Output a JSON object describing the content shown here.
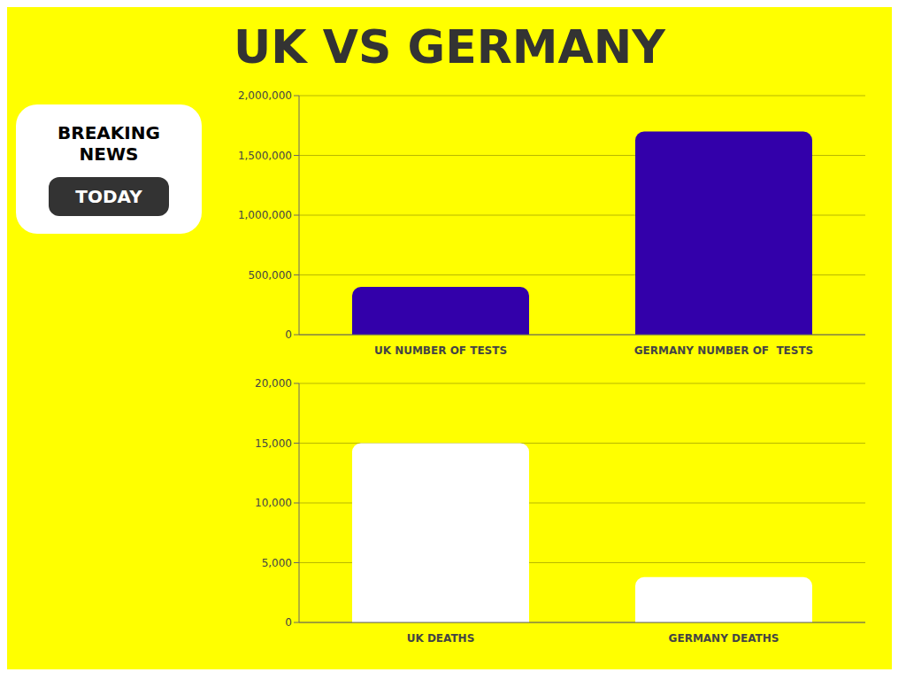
{
  "chart_data": [
    {
      "type": "bar",
      "title": "UK VS GERMANY",
      "annotations": [
        "BREAKING\nNEWS",
        "TODAY"
      ],
      "categories": [
        "UK NUMBER OF TESTS",
        "GERMANY NUMBER OF  TESTS"
      ],
      "values": [
        400000,
        1700000
      ],
      "color": "#3300AA",
      "ylim": [
        0,
        2000000
      ],
      "yticks": [
        0,
        {
          "value": 500000,
          "label": "500,000"
        },
        {
          "value": 1000000,
          "label": "1,000,000"
        },
        {
          "value": 1500000,
          "label": "1,500,000"
        },
        {
          "value": 2000000,
          "label": "2,000,000"
        }
      ],
      "grid": true
    },
    {
      "type": "bar",
      "categories": [
        "UK DEATHS",
        "GERMANY DEATHS"
      ],
      "values": [
        15000,
        3800
      ],
      "color": "#FFFFFF",
      "ylim": [
        0,
        20000
      ],
      "yticks": [
        0,
        {
          "value": 5000,
          "label": "5,000"
        },
        {
          "value": 10000,
          "label": "10,000"
        },
        {
          "value": 15000,
          "label": "15,000"
        },
        {
          "value": 20000,
          "label": "20,000"
        }
      ],
      "grid": true
    }
  ]
}
